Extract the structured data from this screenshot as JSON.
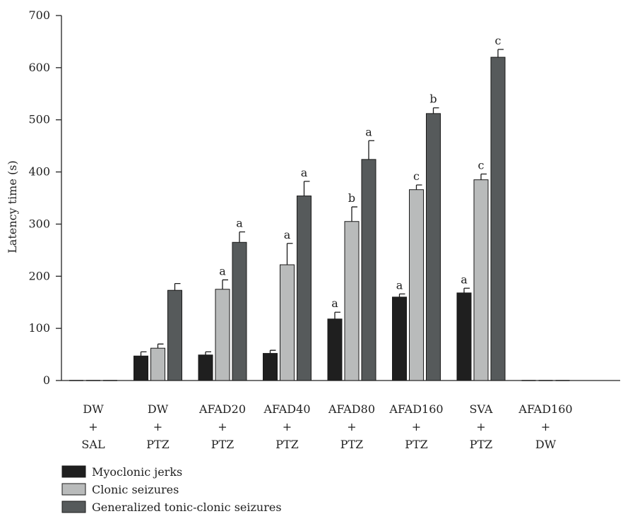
{
  "chart_data": {
    "type": "bar",
    "title": "",
    "xlabel": "",
    "ylabel": "Latency time (s)",
    "ylim": [
      0,
      700
    ],
    "yticks": [
      0,
      100,
      200,
      300,
      400,
      500,
      600,
      700
    ],
    "grid": false,
    "legend_position": "bottom-left",
    "categories": [
      [
        "DW",
        "+",
        "SAL"
      ],
      [
        "DW",
        "+",
        "PTZ"
      ],
      [
        "AFAD20",
        "+",
        "PTZ"
      ],
      [
        "AFAD40",
        "+",
        "PTZ"
      ],
      [
        "AFAD80",
        "+",
        "PTZ"
      ],
      [
        "AFAD160",
        "+",
        "PTZ"
      ],
      [
        "SVA",
        "+",
        "PTZ"
      ],
      [
        "AFAD160",
        "+",
        "DW"
      ]
    ],
    "series": [
      {
        "name": "Myoclonic jerks",
        "color": "#1f1f1f",
        "values": [
          0,
          47,
          49,
          52,
          118,
          160,
          168,
          0
        ],
        "errors": [
          0,
          8,
          6,
          6,
          13,
          6,
          9,
          0
        ],
        "labels": [
          "",
          "",
          "",
          "",
          "a",
          "a",
          "a",
          ""
        ]
      },
      {
        "name": "Clonic seizures",
        "color": "#b9bbbb",
        "values": [
          0,
          62,
          175,
          222,
          305,
          366,
          385,
          0
        ],
        "errors": [
          0,
          8,
          18,
          41,
          28,
          9,
          11,
          0
        ],
        "labels": [
          "",
          "",
          "a",
          "a",
          "b",
          "c",
          "c",
          ""
        ]
      },
      {
        "name": "Generalized tonic-clonic seizures",
        "color": "#565a5b",
        "values": [
          0,
          173,
          265,
          354,
          424,
          512,
          620,
          0
        ],
        "errors": [
          0,
          13,
          20,
          28,
          36,
          11,
          15,
          0
        ],
        "labels": [
          "",
          "",
          "a",
          "a",
          "a",
          "b",
          "c",
          ""
        ]
      }
    ]
  }
}
